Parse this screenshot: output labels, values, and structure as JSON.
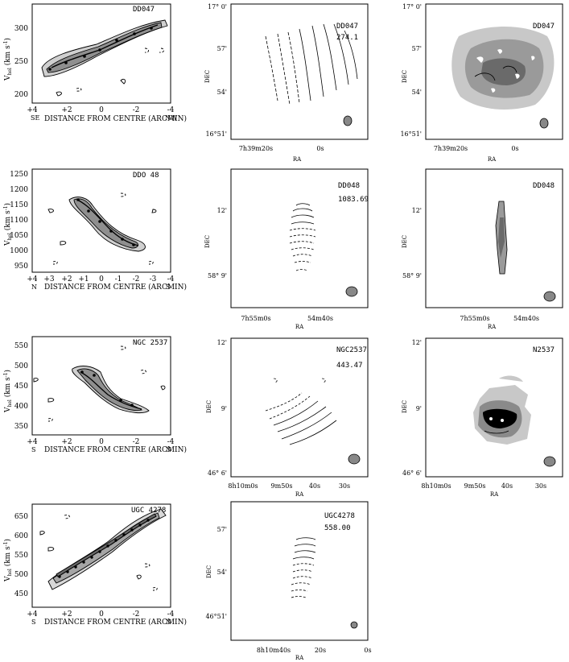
{
  "colors": {
    "ink": "#000000",
    "dark_gray": "#6a6a6a",
    "mid_gray": "#9a9a9a",
    "light_gray": "#c8c8c8",
    "bg": "#ffffff"
  },
  "pv": {
    "ylabel": "V",
    "ylabel_sub": "hel",
    "ylabel_unit": "(km s",
    "ylabel_unit_sup": "-1",
    "ylabel_unit_end": ")",
    "xlabel": "DISTANCE FROM CENTRE (ARCMIN)",
    "panels": [
      {
        "label": "DD047",
        "yticks": [
          "300",
          "250",
          "200"
        ],
        "xticks": [
          "+4",
          "+2",
          "0",
          "-2",
          "-4"
        ],
        "left_end": "SE",
        "right_end": "NW"
      },
      {
        "label": "DDO 48",
        "yticks": [
          "1250",
          "1200",
          "1150",
          "1100",
          "1050",
          "1000",
          "950"
        ],
        "xticks": [
          "+4",
          "+3",
          "+2",
          "+1",
          "0",
          "-1",
          "-2",
          "-3",
          "-4"
        ],
        "left_end": "N",
        "right_end": "S"
      },
      {
        "label": "NGC 2537",
        "yticks": [
          "550",
          "500",
          "450",
          "400",
          "350"
        ],
        "xticks": [
          "+4",
          "+2",
          "0",
          "-2",
          "-4"
        ],
        "left_end": "S",
        "right_end": "N"
      },
      {
        "label": "UGC 4278",
        "yticks": [
          "650",
          "600",
          "550",
          "500",
          "450"
        ],
        "xticks": [
          "+4",
          "+2",
          "0",
          "-2",
          "-4"
        ],
        "left_end": "S",
        "right_end": "N"
      }
    ]
  },
  "maps": {
    "dec_label": "DEC",
    "ra_label": "RA",
    "rows": [
      {
        "velfield": {
          "name": "DD047",
          "value": "274.1"
        },
        "moment": {
          "name": "DD047"
        },
        "dec_ticks": [
          "17° 0'",
          "57'",
          "54'",
          "16°51'"
        ],
        "ra_ticks": [
          "7h39m20s",
          "0s"
        ]
      },
      {
        "velfield": {
          "name": "DD048",
          "value": "1083.69"
        },
        "moment": {
          "name": "DD048"
        },
        "dec_ticks": [
          "12'",
          "58° 9'"
        ],
        "ra_ticks": [
          "7h55m0s",
          "54m40s"
        ]
      },
      {
        "velfield": {
          "name": "NGC2537",
          "value": "443.47"
        },
        "moment": {
          "name": "N2537"
        },
        "dec_ticks": [
          "12'",
          "9'",
          "46° 6'"
        ],
        "ra_ticks": [
          "8h10m0s",
          "9m50s",
          "40s",
          "30s"
        ]
      },
      {
        "velfield": {
          "name": "UGC4278",
          "value": "558.00"
        },
        "dec_ticks": [
          "57'",
          "54'",
          "46°51'"
        ],
        "ra_ticks": [
          "8h10m40s",
          "20s",
          "0s"
        ]
      }
    ]
  }
}
